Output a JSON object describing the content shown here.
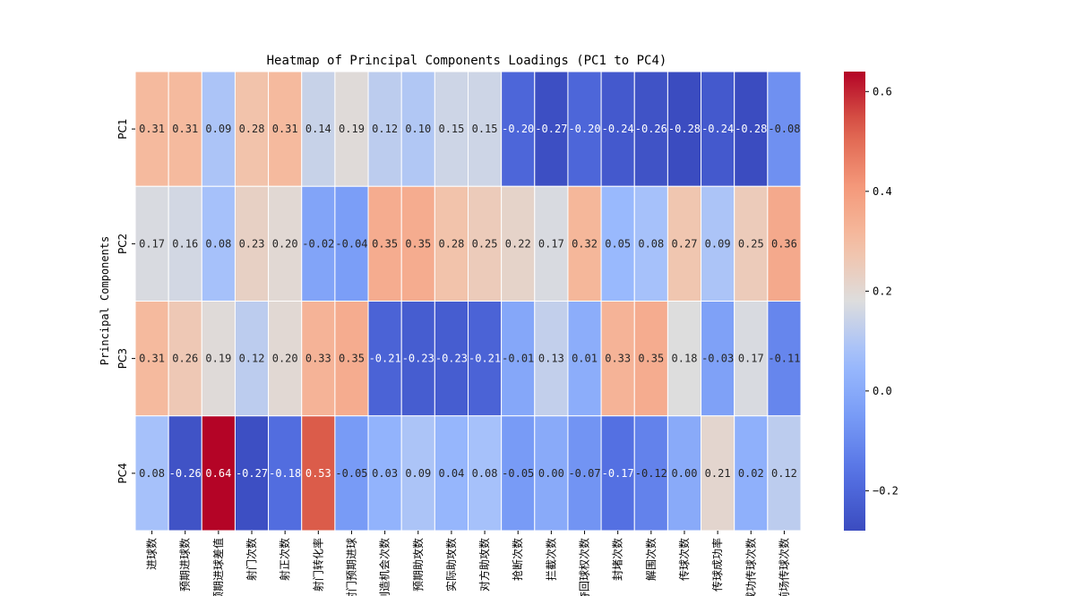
{
  "chart_data": {
    "type": "heatmap",
    "title": "Heatmap of Principal Components Loadings (PC1 to PC4)",
    "ylabel": "Principal Components",
    "xlabel": "",
    "rows": [
      "PC1",
      "PC2",
      "PC3",
      "PC4"
    ],
    "columns": [
      "进球数",
      "预期进球数",
      "预期进球差值",
      "射门次数",
      "射正次数",
      "射门转化率",
      "射门预期进球",
      "创造机会次数",
      "预期助攻数",
      "实际助攻数",
      "对方助攻数",
      "抢断次数",
      "拦截次数",
      "夺回球权次数",
      "封堵次数",
      "解围次数",
      "传球次数",
      "传球成功率",
      "成功传球次数",
      "前场传球次数"
    ],
    "values": [
      [
        0.31,
        0.31,
        0.09,
        0.28,
        0.31,
        0.14,
        0.19,
        0.12,
        0.1,
        0.15,
        0.15,
        -0.2,
        -0.27,
        -0.2,
        -0.24,
        -0.26,
        -0.28,
        -0.24,
        -0.28,
        -0.08
      ],
      [
        0.17,
        0.16,
        0.08,
        0.23,
        0.2,
        -0.02,
        -0.04,
        0.35,
        0.35,
        0.28,
        0.25,
        0.22,
        0.17,
        0.32,
        0.05,
        0.08,
        0.27,
        0.09,
        0.25,
        0.36
      ],
      [
        0.31,
        0.26,
        0.19,
        0.12,
        0.2,
        0.33,
        0.35,
        -0.21,
        -0.23,
        -0.23,
        -0.21,
        -0.01,
        0.13,
        0.01,
        0.33,
        0.35,
        0.18,
        -0.03,
        0.17,
        -0.11
      ],
      [
        0.08,
        -0.26,
        0.64,
        -0.27,
        -0.18,
        0.53,
        -0.05,
        0.03,
        0.09,
        0.04,
        0.08,
        -0.05,
        -0.0,
        -0.07,
        -0.17,
        -0.12,
        -0.0,
        0.21,
        0.02,
        0.12
      ]
    ],
    "vmin": -0.28,
    "vmax": 0.64,
    "colormap": "coolwarm",
    "colorbar_ticks": [
      "-0.2",
      "0.0",
      "0.2",
      "0.4",
      "0.6"
    ],
    "annotations": true,
    "grid": false,
    "legend": "colorbar-right"
  }
}
